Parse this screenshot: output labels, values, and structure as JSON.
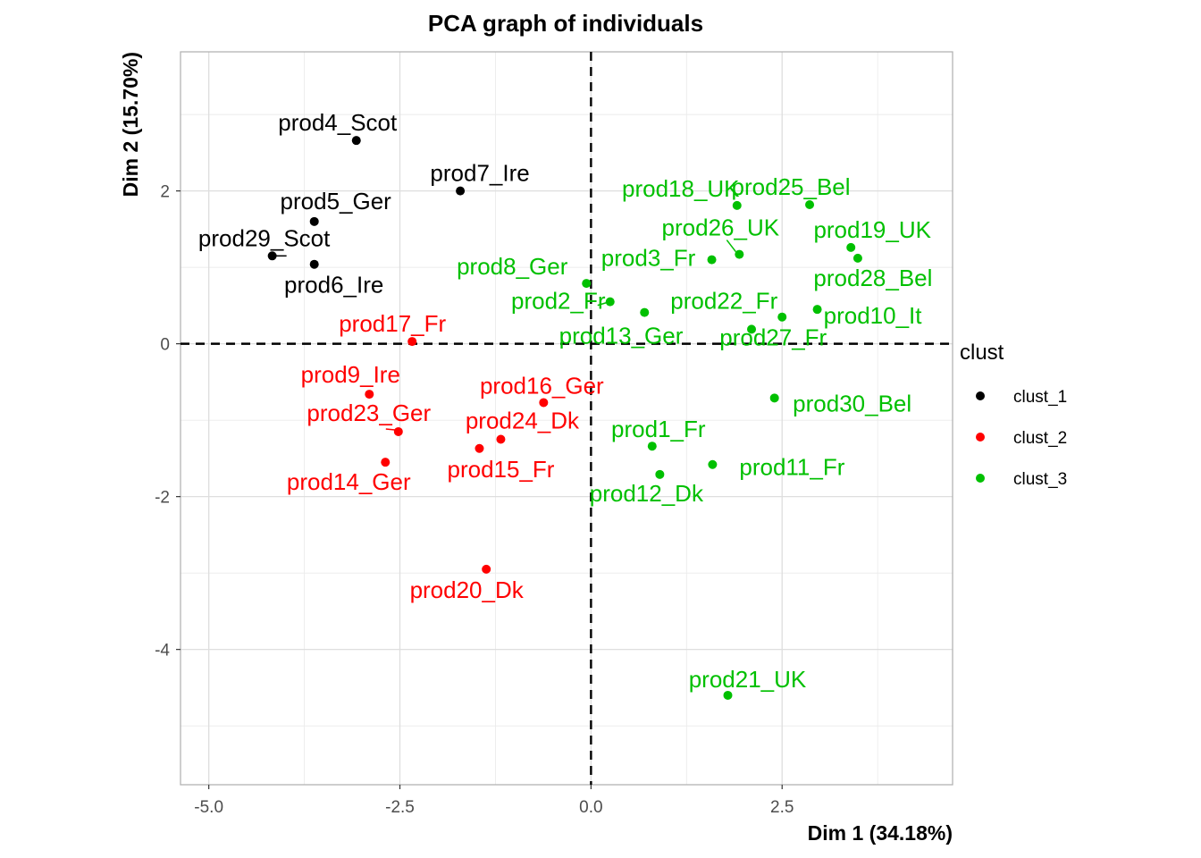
{
  "chart_data": {
    "type": "scatter",
    "title": "PCA graph of individuals",
    "xlabel": "Dim 1 (34.18%)",
    "ylabel": "Dim 2 (15.70%)",
    "xlim": [
      -5.37,
      4.73
    ],
    "ylim": [
      -5.77,
      3.82
    ],
    "x_ticks": [
      -5.0,
      -2.5,
      0.0,
      2.5
    ],
    "x_tick_labels": [
      "-5.0",
      "-2.5",
      "0.0",
      "2.5"
    ],
    "y_ticks": [
      -4,
      -2,
      0,
      2
    ],
    "y_tick_labels": [
      "-4",
      "-2",
      "0",
      "2"
    ],
    "grid": true,
    "reference_lines": {
      "x": 0,
      "y": 0,
      "style": "dashed"
    },
    "legend": {
      "title": "clust",
      "position": "right"
    },
    "series": [
      {
        "name": "clust_1",
        "color": "#000000",
        "points": [
          {
            "label": "prod4_Scot",
            "x": -3.07,
            "y": 2.66
          },
          {
            "label": "prod7_Ire",
            "x": -1.71,
            "y": 2.0
          },
          {
            "label": "prod5_Ger",
            "x": -3.62,
            "y": 1.6
          },
          {
            "label": "prod29_Scot",
            "x": -4.17,
            "y": 1.15
          },
          {
            "label": "prod6_Ire",
            "x": -3.62,
            "y": 1.04
          }
        ]
      },
      {
        "name": "clust_2",
        "color": "#ff0000",
        "points": [
          {
            "label": "prod17_Fr",
            "x": -2.34,
            "y": 0.03
          },
          {
            "label": "prod9_Ire",
            "x": -2.9,
            "y": -0.66
          },
          {
            "label": "prod16_Ger",
            "x": -0.62,
            "y": -0.77
          },
          {
            "label": "prod23_Ger",
            "x": -2.52,
            "y": -1.15
          },
          {
            "label": "prod24_Dk",
            "x": -1.18,
            "y": -1.25
          },
          {
            "label": "prod15_Fr",
            "x": -1.46,
            "y": -1.37
          },
          {
            "label": "prod14_Ger",
            "x": -2.69,
            "y": -1.55
          },
          {
            "label": "prod20_Dk",
            "x": -1.37,
            "y": -2.95
          }
        ]
      },
      {
        "name": "clust_3",
        "color": "#00c000",
        "points": [
          {
            "label": "prod18_UK",
            "x": 1.91,
            "y": 1.81
          },
          {
            "label": "prod25_Bel",
            "x": 2.86,
            "y": 1.82
          },
          {
            "label": "prod26_UK",
            "x": 1.94,
            "y": 1.17
          },
          {
            "label": "prod19_UK",
            "x": 3.4,
            "y": 1.26
          },
          {
            "label": "prod3_Fr",
            "x": 1.58,
            "y": 1.1
          },
          {
            "label": "prod28_Bel",
            "x": 3.49,
            "y": 1.12
          },
          {
            "label": "prod8_Ger",
            "x": -0.06,
            "y": 0.79
          },
          {
            "label": "prod2_Fr",
            "x": 0.25,
            "y": 0.55
          },
          {
            "label": "prod22_Fr",
            "x": 0.7,
            "y": 0.41
          },
          {
            "label": "prod10_It",
            "x": 2.96,
            "y": 0.45
          },
          {
            "label": "prod27_Fr",
            "x": 2.5,
            "y": 0.35
          },
          {
            "label": "prod13_Ger",
            "x": 2.1,
            "y": 0.19
          },
          {
            "label": "prod30_Bel",
            "x": 2.4,
            "y": -0.71
          },
          {
            "label": "prod1_Fr",
            "x": 0.8,
            "y": -1.34
          },
          {
            "label": "prod11_Fr",
            "x": 1.59,
            "y": -1.58
          },
          {
            "label": "prod12_Dk",
            "x": 0.9,
            "y": -1.71
          },
          {
            "label": "prod21_UK",
            "x": 1.79,
            "y": -4.6
          }
        ]
      }
    ]
  }
}
